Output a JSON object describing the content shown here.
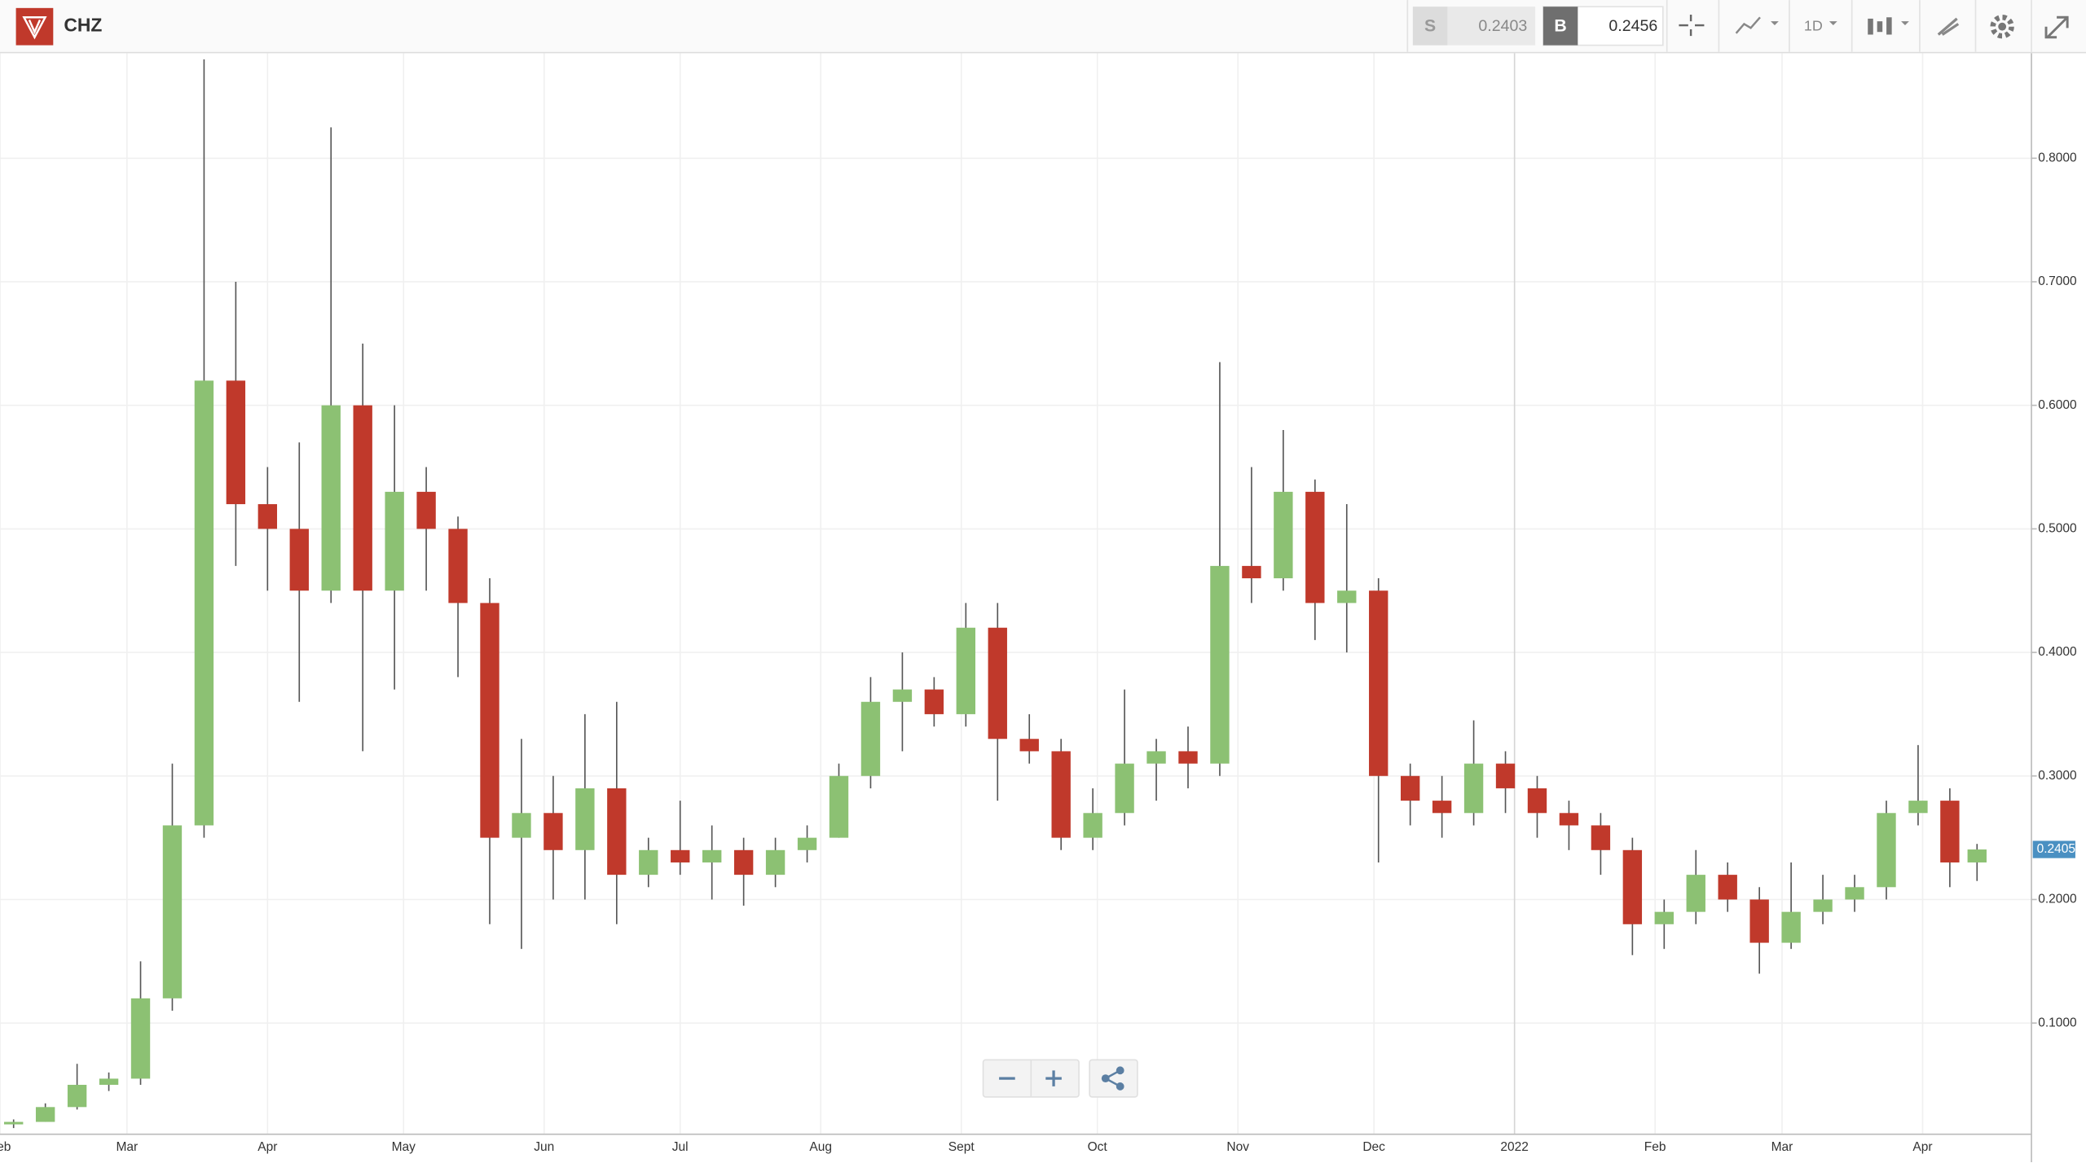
{
  "header": {
    "symbol": "CHZ",
    "sell_label": "S",
    "sell": 0.2403,
    "buy_label": "B",
    "buy": 0.2456,
    "interval": "1D"
  },
  "chart_data": {
    "type": "candlestick",
    "up_color": "#8cc173",
    "down_color": "#c0392b",
    "x": [
      -25,
      -18,
      -11,
      -4,
      3,
      10,
      17,
      24,
      31,
      38,
      45,
      52,
      59,
      66,
      73,
      80,
      87,
      94,
      101,
      108,
      115,
      122,
      129,
      136,
      143,
      150,
      157,
      164,
      171,
      178,
      185,
      192,
      199,
      206,
      213,
      220,
      227,
      234,
      241,
      248,
      255,
      262,
      269,
      276,
      283,
      290,
      297,
      304,
      311,
      318,
      325,
      332,
      339,
      346,
      353,
      360,
      367,
      374,
      381,
      388,
      395,
      402,
      408
    ],
    "open": [
      0.018,
      0.02,
      0.032,
      0.05,
      0.055,
      0.12,
      0.26,
      0.62,
      0.52,
      0.5,
      0.45,
      0.6,
      0.45,
      0.53,
      0.5,
      0.44,
      0.25,
      0.27,
      0.24,
      0.29,
      0.22,
      0.24,
      0.23,
      0.24,
      0.22,
      0.24,
      0.25,
      0.3,
      0.36,
      0.37,
      0.35,
      0.42,
      0.33,
      0.32,
      0.25,
      0.27,
      0.31,
      0.32,
      0.31,
      0.47,
      0.46,
      0.53,
      0.44,
      0.45,
      0.3,
      0.28,
      0.27,
      0.31,
      0.29,
      0.27,
      0.26,
      0.24,
      0.18,
      0.19,
      0.22,
      0.2,
      0.165,
      0.19,
      0.2,
      0.21,
      0.27,
      0.28,
      0.23
    ],
    "high": [
      0.022,
      0.035,
      0.067,
      0.06,
      0.15,
      0.31,
      0.88,
      0.7,
      0.55,
      0.57,
      0.825,
      0.65,
      0.6,
      0.55,
      0.51,
      0.46,
      0.33,
      0.3,
      0.35,
      0.36,
      0.25,
      0.28,
      0.26,
      0.25,
      0.25,
      0.26,
      0.31,
      0.38,
      0.4,
      0.38,
      0.44,
      0.44,
      0.35,
      0.33,
      0.29,
      0.37,
      0.33,
      0.34,
      0.635,
      0.55,
      0.58,
      0.54,
      0.52,
      0.46,
      0.31,
      0.3,
      0.345,
      0.32,
      0.3,
      0.28,
      0.27,
      0.25,
      0.2,
      0.24,
      0.23,
      0.21,
      0.23,
      0.22,
      0.22,
      0.28,
      0.325,
      0.29,
      0.245
    ],
    "low": [
      0.015,
      0.02,
      0.03,
      0.045,
      0.05,
      0.11,
      0.25,
      0.47,
      0.45,
      0.36,
      0.44,
      0.32,
      0.37,
      0.45,
      0.38,
      0.18,
      0.16,
      0.2,
      0.2,
      0.18,
      0.21,
      0.22,
      0.2,
      0.195,
      0.21,
      0.23,
      0.25,
      0.29,
      0.32,
      0.34,
      0.34,
      0.28,
      0.31,
      0.24,
      0.24,
      0.26,
      0.28,
      0.29,
      0.3,
      0.44,
      0.45,
      0.41,
      0.4,
      0.23,
      0.26,
      0.25,
      0.26,
      0.27,
      0.25,
      0.24,
      0.22,
      0.155,
      0.16,
      0.18,
      0.19,
      0.14,
      0.16,
      0.18,
      0.19,
      0.2,
      0.26,
      0.21,
      0.215
    ],
    "close": [
      0.02,
      0.032,
      0.05,
      0.055,
      0.12,
      0.26,
      0.62,
      0.52,
      0.5,
      0.45,
      0.6,
      0.45,
      0.53,
      0.5,
      0.44,
      0.25,
      0.27,
      0.24,
      0.29,
      0.22,
      0.24,
      0.23,
      0.24,
      0.22,
      0.24,
      0.25,
      0.3,
      0.36,
      0.37,
      0.35,
      0.42,
      0.33,
      0.32,
      0.25,
      0.27,
      0.31,
      0.32,
      0.31,
      0.47,
      0.46,
      0.53,
      0.44,
      0.45,
      0.3,
      0.28,
      0.27,
      0.31,
      0.29,
      0.27,
      0.26,
      0.24,
      0.18,
      0.19,
      0.22,
      0.2,
      0.165,
      0.19,
      0.2,
      0.21,
      0.27,
      0.28,
      0.23,
      0.2405
    ],
    "xlim": [
      -28,
      420
    ],
    "ylim": [
      0.01,
      0.885
    ],
    "xticks": [
      {
        "value": -28,
        "label": "Feb"
      },
      {
        "value": 0,
        "label": "Mar"
      },
      {
        "value": 31,
        "label": "Apr"
      },
      {
        "value": 61,
        "label": "May"
      },
      {
        "value": 92,
        "label": "Jun"
      },
      {
        "value": 122,
        "label": "Jul"
      },
      {
        "value": 153,
        "label": "Aug"
      },
      {
        "value": 184,
        "label": "Sept"
      },
      {
        "value": 214,
        "label": "Oct"
      },
      {
        "value": 245,
        "label": "Nov"
      },
      {
        "value": 275,
        "label": "Dec"
      },
      {
        "value": 306,
        "label": "2022"
      },
      {
        "value": 337,
        "label": "Feb"
      },
      {
        "value": 365,
        "label": "Mar"
      },
      {
        "value": 396,
        "label": "Apr"
      }
    ],
    "yticks": [
      {
        "value": 0.1,
        "label": "0.1000"
      },
      {
        "value": 0.2,
        "label": "0.2000"
      },
      {
        "value": 0.3,
        "label": "0.3000"
      },
      {
        "value": 0.4,
        "label": "0.4000"
      },
      {
        "value": 0.5,
        "label": "0.5000"
      },
      {
        "value": 0.6,
        "label": "0.6000"
      },
      {
        "value": 0.7,
        "label": "0.7000"
      },
      {
        "value": 0.8,
        "label": "0.8000"
      }
    ],
    "grid": true,
    "last_price": 0.2405
  }
}
